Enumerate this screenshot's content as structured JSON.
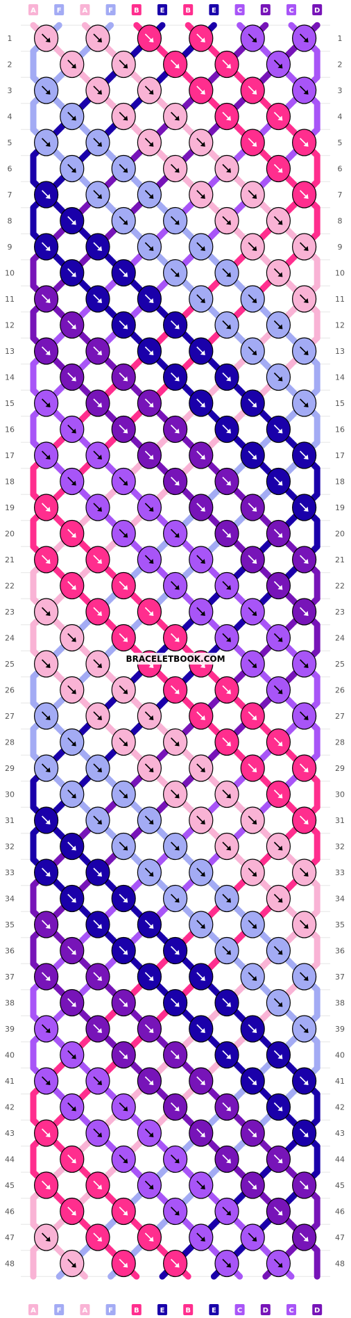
{
  "watermark": "BRACELETBOOK.COM",
  "colors": {
    "A": "#f9b3d5",
    "B": "#ff2e8e",
    "C": "#a855f7",
    "D": "#7714b8",
    "E": "#1a00aa",
    "F": "#a3abf4"
  },
  "strands": [
    "A",
    "F",
    "A",
    "F",
    "B",
    "E",
    "B",
    "E",
    "C",
    "D",
    "C",
    "D"
  ],
  "row_count": 48,
  "row_labels": [
    "1",
    "2",
    "3",
    "4",
    "5",
    "6",
    "7",
    "8",
    "9",
    "10",
    "11",
    "12",
    "13",
    "14",
    "15",
    "16",
    "17",
    "18",
    "19",
    "20",
    "21",
    "22",
    "23",
    "24",
    "25",
    "26",
    "27",
    "28",
    "29",
    "30",
    "31",
    "32",
    "33",
    "34",
    "35",
    "36",
    "37",
    "38",
    "39",
    "40",
    "41",
    "42",
    "43",
    "44",
    "45",
    "46",
    "47",
    "48"
  ]
}
